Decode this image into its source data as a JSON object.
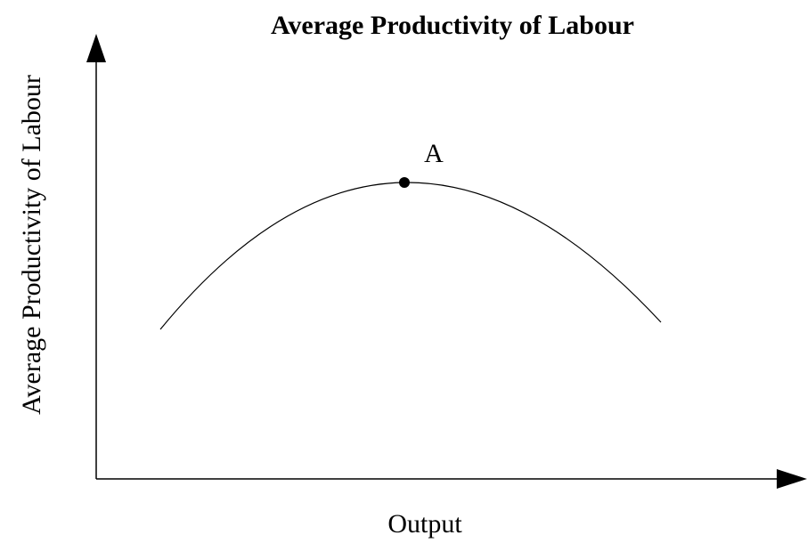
{
  "title": "Average Productivity of Labour",
  "x_axis_label": "Output",
  "y_axis_label": "Average Productivity of Labour",
  "point_label": "A"
}
